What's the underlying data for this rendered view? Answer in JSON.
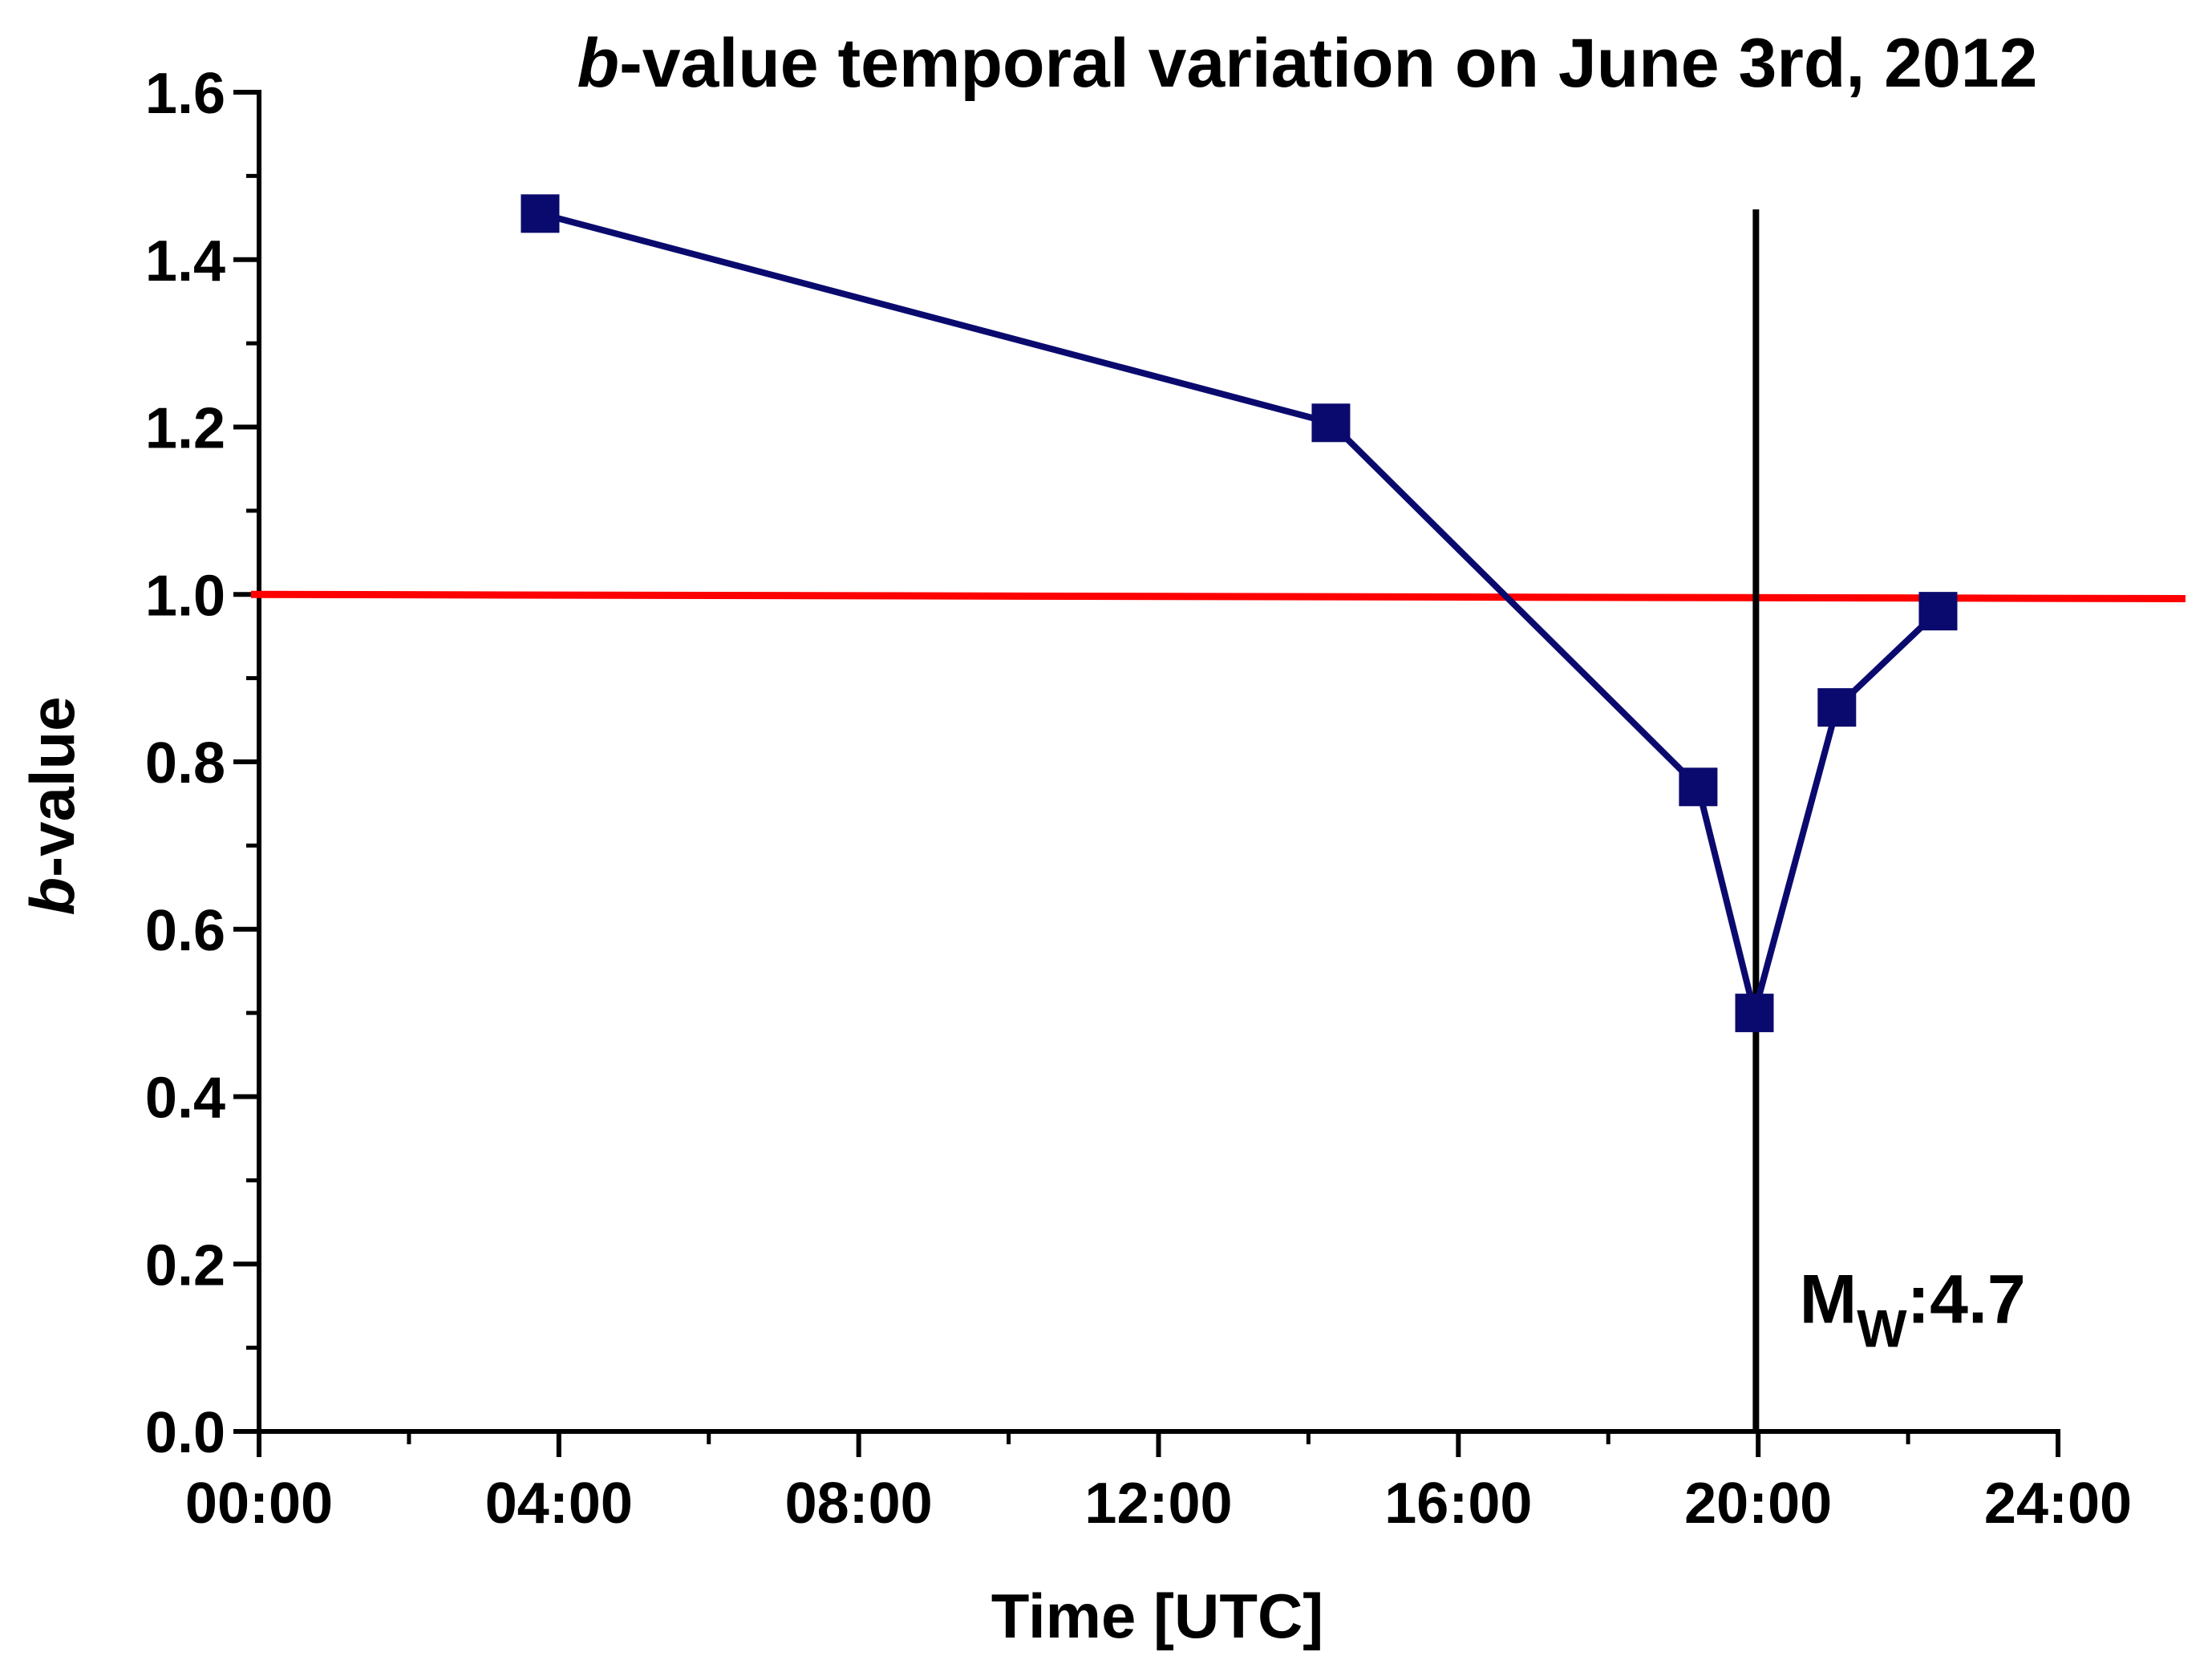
{
  "chart_data": {
    "type": "line",
    "title": {
      "italic_part": "b",
      "rest": "-value temporal variation on June 3rd, 2012"
    },
    "xlabel": "Time [UTC]",
    "ylabel": {
      "italic_part": "b",
      "rest": "-value"
    },
    "x_unit": "hours UTC",
    "xlim": [
      0,
      24
    ],
    "ylim": [
      0,
      1.6
    ],
    "x_ticks": [
      {
        "value": 0,
        "label": "00:00"
      },
      {
        "value": 4,
        "label": "04:00"
      },
      {
        "value": 8,
        "label": "08:00"
      },
      {
        "value": 12,
        "label": "12:00"
      },
      {
        "value": 16,
        "label": "16:00"
      },
      {
        "value": 20,
        "label": "20:00"
      },
      {
        "value": 24,
        "label": "24:00"
      }
    ],
    "x_minor_step": 2,
    "y_ticks": [
      {
        "value": 0.0,
        "label": "0.0"
      },
      {
        "value": 0.2,
        "label": "0.2"
      },
      {
        "value": 0.4,
        "label": "0.4"
      },
      {
        "value": 0.6,
        "label": "0.6"
      },
      {
        "value": 0.8,
        "label": "0.8"
      },
      {
        "value": 1.0,
        "label": "1.0"
      },
      {
        "value": 1.2,
        "label": "1.2"
      },
      {
        "value": 1.4,
        "label": "1.4"
      },
      {
        "value": 1.6,
        "label": "1.6"
      }
    ],
    "y_minor_step": 0.1,
    "series": [
      {
        "name": "b-value",
        "color": "#0a0a6e",
        "marker": "square",
        "x": [
          3.75,
          14.3,
          19.2,
          19.95,
          21.05,
          22.4
        ],
        "y": [
          1.455,
          1.205,
          0.77,
          0.5,
          0.865,
          0.98
        ]
      }
    ],
    "reference_lines": [
      {
        "name": "b-value-1-reference",
        "orientation": "horizontal",
        "color": "#ff0000",
        "y_start": 1.0,
        "y_end": 0.995,
        "x_end": 25.7
      },
      {
        "name": "mainshock-time",
        "orientation": "vertical",
        "color": "#000000",
        "x": 19.97,
        "y_top": 1.46
      }
    ],
    "annotations": [
      {
        "name": "mainshock-magnitude",
        "main": "M",
        "subscript": "W",
        "suffix": ":4.7",
        "x": 20.55,
        "y": 0.13
      }
    ],
    "grid": false,
    "legend": "none"
  }
}
